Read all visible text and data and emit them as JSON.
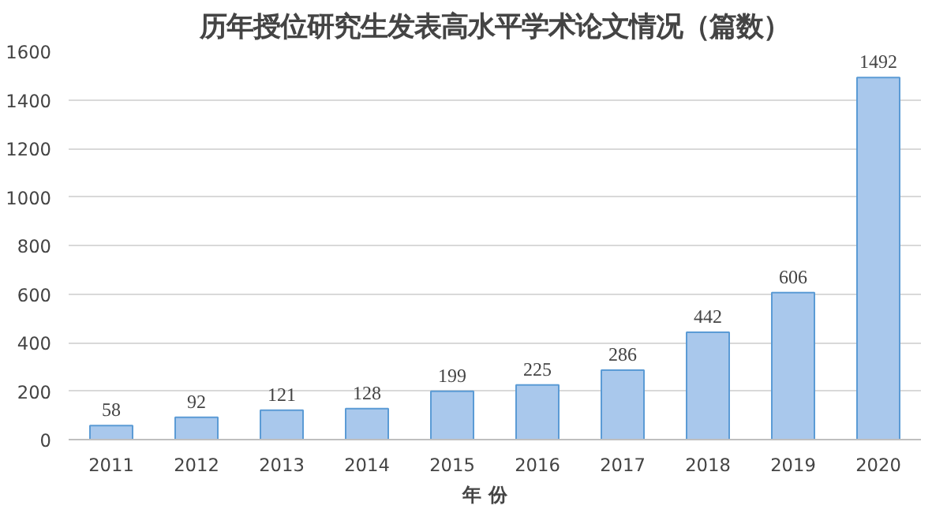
{
  "chart_data": {
    "type": "bar",
    "title": "历年授位研究生发表高水平学术论文情况（篇数）",
    "xlabel": "年    份",
    "categories": [
      "2011",
      "2012",
      "2013",
      "2014",
      "2015",
      "2016",
      "2017",
      "2018",
      "2019",
      "2020"
    ],
    "values": [
      58,
      92,
      121,
      128,
      199,
      225,
      286,
      442,
      606,
      1492
    ],
    "color": "#a9c8ec",
    "ylim": [
      0,
      1600
    ],
    "yticks": [
      0,
      200,
      400,
      600,
      800,
      1000,
      1200,
      1400,
      1600
    ],
    "grid": "y",
    "data_labels": true
  }
}
